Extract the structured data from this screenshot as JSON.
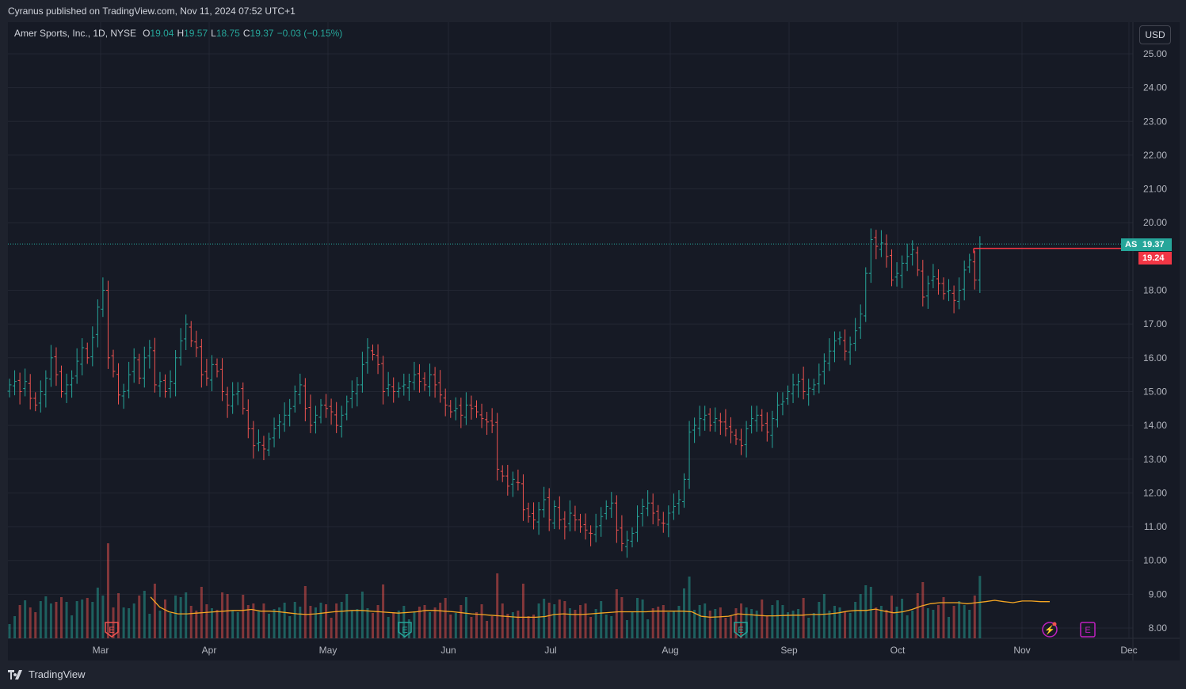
{
  "header": {
    "published": "Cyranus published on TradingView.com, Nov 11, 2024 07:52 UTC+1"
  },
  "legend": {
    "symbol": "Amer Sports, Inc., 1D, NYSE",
    "o_label": "O",
    "o": "19.04",
    "h_label": "H",
    "h": "19.57",
    "l_label": "L",
    "l": "18.75",
    "c_label": "C",
    "c": "19.37",
    "change": "−0.03 (−0.15%)"
  },
  "currency_button": "USD",
  "brand": "TradingView",
  "colors": {
    "up": "#26a69a",
    "down": "#ef5350",
    "ma": "#f5a623",
    "bg": "#161a25"
  },
  "price_tags": {
    "symbol_tag": "AS",
    "last": "19.37",
    "line": "19.24"
  },
  "chart_data": {
    "type": "ohlc-bar",
    "y_axis_labels": [
      "25.00",
      "24.00",
      "23.00",
      "22.00",
      "21.00",
      "20.00",
      "18.00",
      "17.00",
      "16.00",
      "15.00",
      "14.00",
      "13.00",
      "12.00",
      "11.00",
      "10.00",
      "9.00",
      "8.00"
    ],
    "x_axis_labels": [
      "Mar",
      "Apr",
      "May",
      "Jun",
      "Jul",
      "Aug",
      "Sep",
      "Oct",
      "Nov",
      "Dec"
    ],
    "ylim": [
      7.7,
      25.6
    ],
    "horizontal_line": 19.24,
    "last_price_line": 19.37,
    "closes": [
      15.2,
      15.3,
      15.0,
      15.3,
      14.8,
      14.6,
      15.0,
      15.4,
      16.0,
      15.5,
      15.0,
      15.2,
      15.4,
      15.9,
      16.3,
      16.0,
      16.6,
      17.5,
      18.0,
      16.0,
      15.6,
      14.9,
      15.0,
      15.5,
      16.0,
      15.4,
      16.0,
      16.3,
      15.2,
      15.3,
      15.0,
      15.3,
      16.0,
      16.5,
      17.0,
      16.5,
      16.3,
      15.5,
      15.4,
      15.8,
      15.6,
      15.0,
      14.6,
      14.9,
      15.0,
      14.5,
      13.9,
      13.4,
      13.5,
      13.3,
      13.6,
      13.9,
      14.1,
      14.3,
      14.5,
      15.0,
      15.2,
      14.5,
      14.0,
      14.3,
      14.6,
      14.5,
      14.4,
      14.0,
      14.3,
      14.7,
      15.0,
      15.2,
      15.8,
      16.3,
      16.1,
      15.8,
      15.0,
      15.2,
      15.0,
      15.1,
      15.2,
      15.3,
      15.5,
      15.3,
      15.2,
      15.5,
      15.2,
      14.9,
      14.6,
      14.4,
      14.5,
      14.3,
      14.6,
      14.5,
      14.4,
      14.2,
      14.1,
      14.0,
      12.7,
      12.5,
      12.2,
      12.4,
      12.3,
      11.5,
      11.3,
      11.2,
      11.5,
      11.8,
      11.2,
      11.6,
      11.2,
      11.0,
      11.4,
      11.2,
      11.0,
      10.9,
      10.8,
      11.0,
      11.3,
      11.6,
      11.7,
      10.9,
      10.5,
      10.6,
      10.8,
      11.3,
      11.6,
      11.7,
      11.4,
      11.2,
      11.1,
      11.4,
      11.6,
      11.8,
      12.4,
      13.8,
      14.0,
      14.2,
      14.3,
      14.0,
      14.2,
      14.1,
      13.9,
      13.8,
      13.6,
      13.4,
      13.9,
      14.2,
      14.3,
      14.0,
      13.8,
      14.2,
      14.6,
      14.7,
      15.0,
      15.2,
      15.3,
      15.0,
      15.1,
      15.2,
      15.5,
      15.9,
      16.2,
      16.5,
      16.6,
      16.2,
      16.4,
      16.8,
      17.3,
      18.5,
      19.5,
      19.3,
      19.4,
      19.0,
      18.3,
      18.5,
      18.8,
      19.0,
      19.2,
      18.6,
      17.8,
      18.2,
      18.4,
      18.2,
      17.9,
      18.0,
      17.7,
      18.0,
      18.6,
      18.9,
      18.3,
      19.37
    ],
    "volume_ma": [
      8.92,
      8.62,
      8.48,
      8.42,
      8.42,
      8.44,
      8.46,
      8.48,
      8.5,
      8.52,
      8.52,
      8.55,
      8.5,
      8.5,
      8.48,
      8.45,
      8.42,
      8.4,
      8.42,
      8.45,
      8.48,
      8.5,
      8.52,
      8.52,
      8.5,
      8.48,
      8.46,
      8.44,
      8.46,
      8.48,
      8.52,
      8.52,
      8.5,
      8.48,
      8.45,
      8.42,
      8.4,
      8.38,
      8.36,
      8.34,
      8.32,
      8.32,
      8.32,
      8.34,
      8.4,
      8.42,
      8.4,
      8.4,
      8.42,
      8.44,
      8.46,
      8.48,
      8.48,
      8.48,
      8.48,
      8.5,
      8.5,
      8.5,
      8.5,
      8.48,
      8.35,
      8.32,
      8.33,
      8.35,
      8.42,
      8.4,
      8.38,
      8.36,
      8.36,
      8.37,
      8.38,
      8.38,
      8.4,
      8.4,
      8.42,
      8.45,
      8.5,
      8.52,
      8.52,
      8.56,
      8.5,
      8.45,
      8.48,
      8.55,
      8.65,
      8.72,
      8.75,
      8.75,
      8.75,
      8.72,
      8.75,
      8.78,
      8.82,
      8.78,
      8.75,
      8.8,
      8.8,
      8.78,
      8.78
    ]
  },
  "markers": [
    {
      "label": "E",
      "kind": "earnings-past-down"
    },
    {
      "label": "E",
      "kind": "earnings-past-up"
    },
    {
      "label": "E",
      "kind": "earnings-past-up"
    },
    {
      "label": "⚡",
      "kind": "dividend"
    },
    {
      "label": "E",
      "kind": "earnings-future"
    }
  ]
}
